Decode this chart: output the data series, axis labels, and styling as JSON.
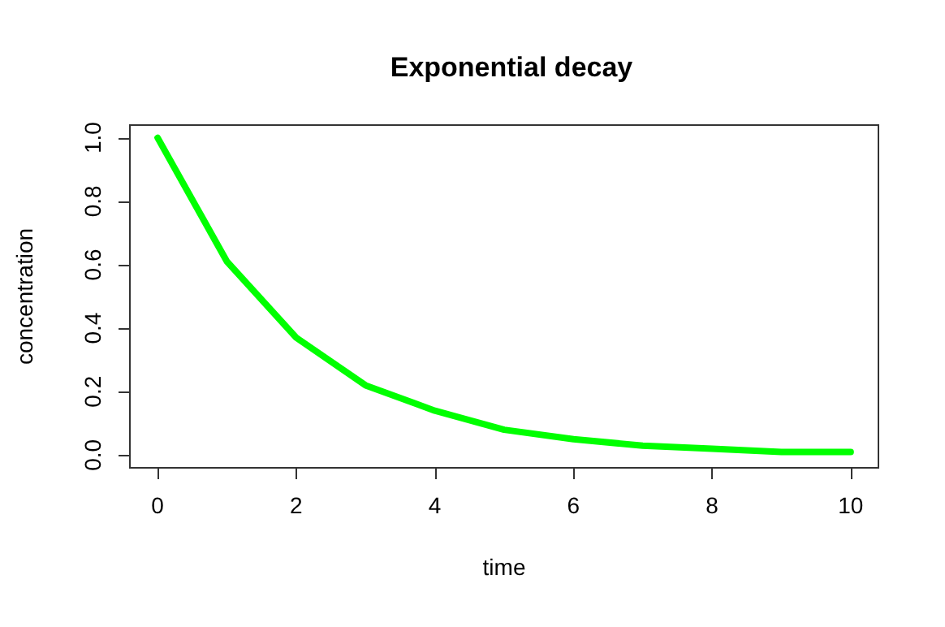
{
  "chart_data": {
    "type": "line",
    "title": "Exponential decay",
    "xlabel": "time",
    "ylabel": "concentration",
    "x": [
      0,
      1,
      2,
      3,
      4,
      5,
      6,
      7,
      8,
      9,
      10
    ],
    "series": [
      {
        "color": "#00ff00",
        "values": [
          1,
          0.61,
          0.37,
          0.22,
          0.14,
          0.08,
          0.05,
          0.03,
          0.02,
          0.01,
          0.01
        ]
      }
    ],
    "xlim": [
      -0.4,
      10.4
    ],
    "xticks": [
      0,
      2,
      4,
      6,
      8,
      10
    ],
    "ylim": [
      -0.04,
      1.04
    ],
    "yticks": [
      {
        "value": 0,
        "label": "0.0"
      },
      {
        "value": 0.2,
        "label": "0.2"
      },
      {
        "value": 0.4,
        "label": "0.4"
      },
      {
        "value": 0.6,
        "label": "0.6"
      },
      {
        "value": 0.8,
        "label": "0.8"
      },
      {
        "value": 1,
        "label": "1.0"
      }
    ],
    "grid": false,
    "marker": "none",
    "line_style": "solid"
  }
}
